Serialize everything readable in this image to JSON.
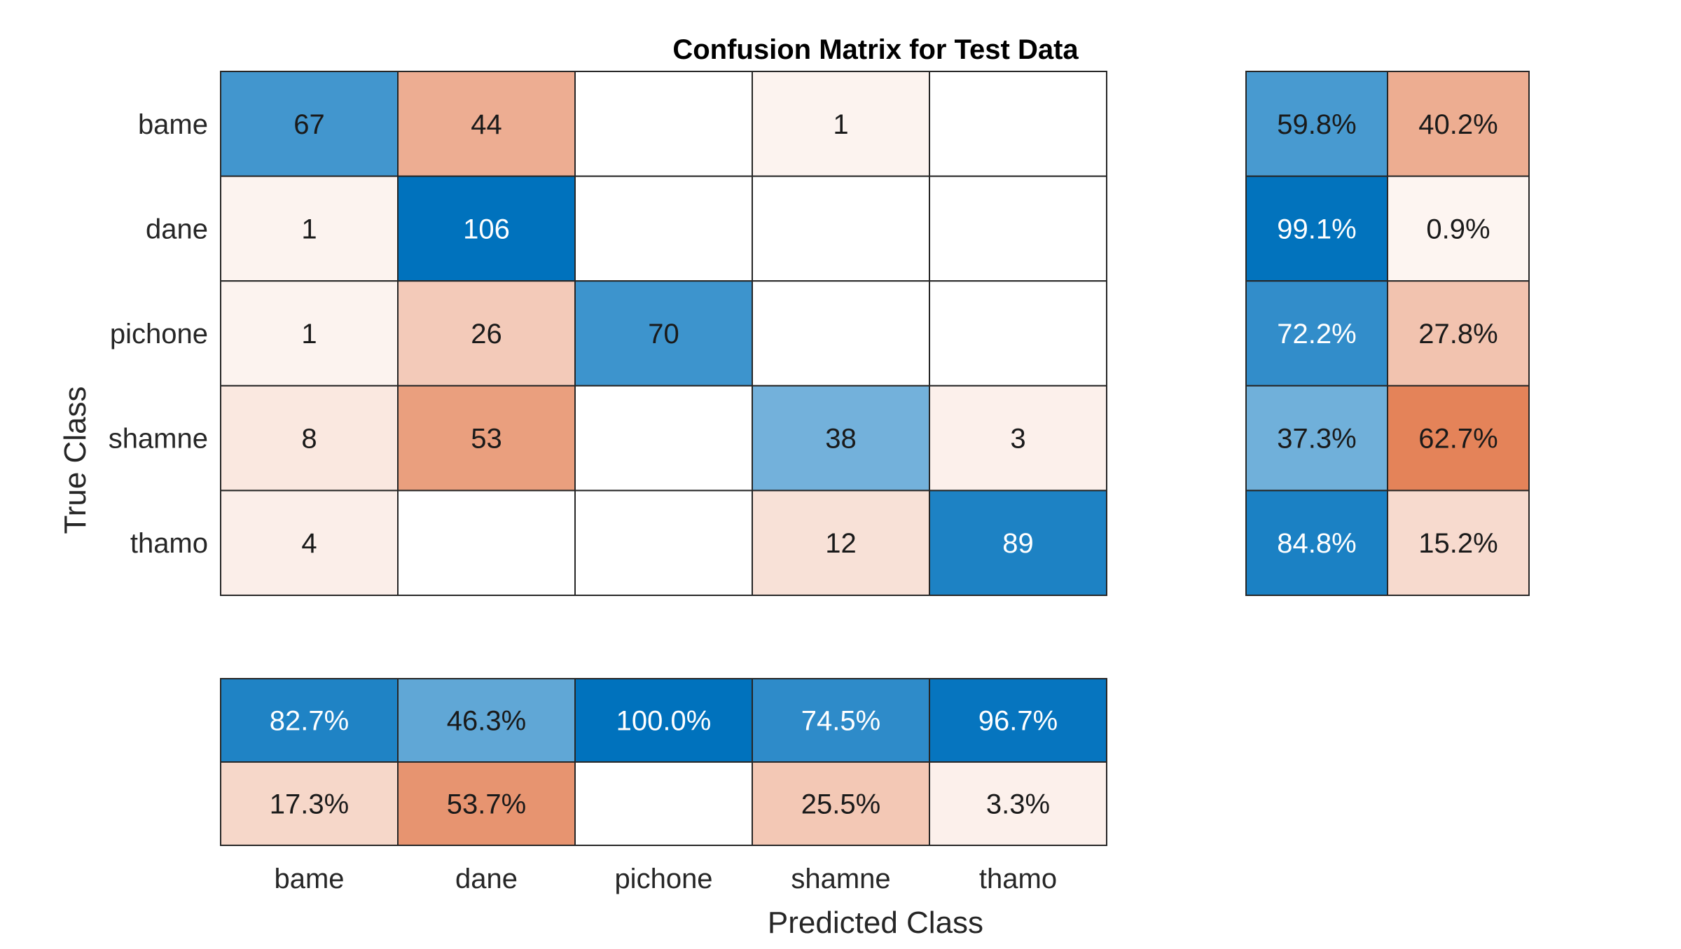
{
  "chart_data": {
    "type": "heatmap",
    "title": "Confusion Matrix for Test Data",
    "xlabel": "Predicted Class",
    "ylabel": "True Class",
    "classes": [
      "bame",
      "dane",
      "pichone",
      "shamne",
      "thamo"
    ],
    "matrix": [
      [
        67,
        44,
        null,
        1,
        null
      ],
      [
        1,
        106,
        null,
        null,
        null
      ],
      [
        1,
        26,
        70,
        null,
        null
      ],
      [
        8,
        53,
        null,
        38,
        3
      ],
      [
        4,
        null,
        null,
        12,
        89
      ]
    ],
    "row_summary": [
      [
        "59.8%",
        "40.2%"
      ],
      [
        "99.1%",
        "0.9%"
      ],
      [
        "72.2%",
        "27.8%"
      ],
      [
        "37.3%",
        "62.7%"
      ],
      [
        "84.8%",
        "15.2%"
      ]
    ],
    "row_summary_values": [
      [
        59.8,
        40.2
      ],
      [
        99.1,
        0.9
      ],
      [
        72.2,
        27.8
      ],
      [
        37.3,
        62.7
      ],
      [
        84.8,
        15.2
      ]
    ],
    "column_summary": [
      [
        "82.7%",
        "46.3%",
        "100.0%",
        "74.5%",
        "96.7%"
      ],
      [
        "17.3%",
        "53.7%",
        "",
        "25.5%",
        "3.3%"
      ]
    ],
    "column_summary_values": [
      [
        82.7,
        46.3,
        100.0,
        74.5,
        96.7
      ],
      [
        17.3,
        53.7,
        0.0,
        25.5,
        3.3
      ]
    ],
    "colors": {
      "positive": "#0072bd",
      "negative": "#d95319",
      "grid": "#262626",
      "background": "#ffffff",
      "text_dark": "#1a1a1a",
      "text_light": "#ffffff"
    }
  }
}
